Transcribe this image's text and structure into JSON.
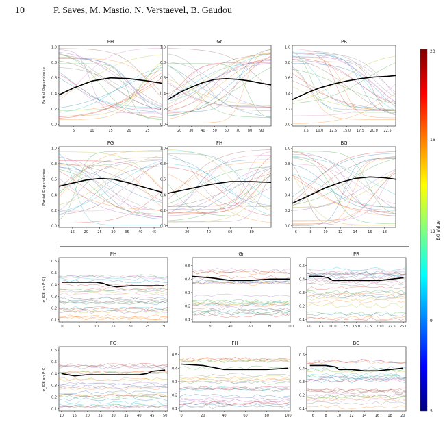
{
  "header": {
    "page_number": "10",
    "authors": "P. Saves, M. Mastio, N. Verstaevel, B. Gaudou"
  },
  "colorbar": {
    "label": "BG Value",
    "ticks": [
      "20",
      "16",
      "12",
      "9",
      "5"
    ],
    "range": [
      5,
      20
    ],
    "colors": [
      "#00007f",
      "#0000ff",
      "#007fff",
      "#00ffff",
      "#7fff7f",
      "#ffff00",
      "#ff7f00",
      "#ff0000",
      "#7f0000"
    ]
  },
  "chart_data": [
    {
      "type": "line",
      "group": "pdp",
      "title": "PH",
      "ylabel": "Partial Dependence",
      "xlim": [
        1,
        29
      ],
      "ylim": [
        -0.02,
        1.02
      ],
      "xticks": [
        "5",
        "10",
        "15",
        "20",
        "25"
      ],
      "yticks": [
        "0.0",
        "0.2",
        "0.4",
        "0.6",
        "0.8",
        "1.0"
      ],
      "series": [
        {
          "x": [
            1,
            5,
            10,
            15,
            20,
            25,
            29
          ],
          "values": [
            0.38,
            0.47,
            0.56,
            0.6,
            0.59,
            0.56,
            0.53
          ]
        }
      ]
    },
    {
      "type": "line",
      "group": "pdp",
      "title": "Gr",
      "ylabel": "",
      "xlim": [
        10,
        98
      ],
      "ylim": [
        -0.02,
        1.02
      ],
      "xticks": [
        "20",
        "30",
        "40",
        "50",
        "60",
        "70",
        "80",
        "90"
      ],
      "yticks": [
        "0.0",
        "0.2",
        "0.4",
        "0.6",
        "0.8",
        "1.0"
      ],
      "series": [
        {
          "x": [
            10,
            20,
            30,
            40,
            50,
            60,
            70,
            80,
            90,
            98
          ],
          "values": [
            0.32,
            0.41,
            0.48,
            0.54,
            0.58,
            0.59,
            0.58,
            0.56,
            0.53,
            0.51
          ]
        }
      ]
    },
    {
      "type": "line",
      "group": "pdp",
      "title": "PR",
      "ylabel": "",
      "xlim": [
        5,
        24
      ],
      "ylim": [
        -0.02,
        1.02
      ],
      "xticks": [
        "7.5",
        "10.0",
        "12.5",
        "15.0",
        "17.5",
        "20.0",
        "22.5"
      ],
      "yticks": [
        "0.0",
        "0.2",
        "0.4",
        "0.6",
        "0.8",
        "1.0"
      ],
      "series": [
        {
          "x": [
            5,
            7.5,
            10,
            12.5,
            15,
            17.5,
            20,
            22.5,
            24
          ],
          "values": [
            0.32,
            0.4,
            0.47,
            0.52,
            0.56,
            0.59,
            0.61,
            0.62,
            0.63
          ]
        }
      ]
    },
    {
      "type": "line",
      "group": "pdp",
      "title": "FG",
      "ylabel": "Partial Dependence",
      "xlim": [
        10,
        48
      ],
      "ylim": [
        -0.02,
        1.02
      ],
      "xticks": [
        "15",
        "20",
        "25",
        "30",
        "35",
        "40",
        "45"
      ],
      "yticks": [
        "0.0",
        "0.2",
        "0.4",
        "0.6",
        "0.8",
        "1.0"
      ],
      "series": [
        {
          "x": [
            10,
            15,
            20,
            25,
            30,
            35,
            40,
            45,
            48
          ],
          "values": [
            0.51,
            0.55,
            0.59,
            0.61,
            0.6,
            0.56,
            0.51,
            0.46,
            0.43
          ]
        }
      ]
    },
    {
      "type": "line",
      "group": "pdp",
      "title": "FH",
      "ylabel": "",
      "xlim": [
        2,
        98
      ],
      "ylim": [
        -0.02,
        1.02
      ],
      "xticks": [
        "20",
        "40",
        "60",
        "80"
      ],
      "yticks": [
        "0.0",
        "0.2",
        "0.4",
        "0.6",
        "0.8",
        "1.0"
      ],
      "series": [
        {
          "x": [
            2,
            20,
            40,
            60,
            80,
            98
          ],
          "values": [
            0.42,
            0.47,
            0.53,
            0.57,
            0.57,
            0.56
          ]
        }
      ]
    },
    {
      "type": "line",
      "group": "pdp",
      "title": "BG",
      "ylabel": "",
      "xlim": [
        5.5,
        19.5
      ],
      "ylim": [
        -0.02,
        1.02
      ],
      "xticks": [
        "6",
        "8",
        "10",
        "12",
        "14",
        "16",
        "18"
      ],
      "yticks": [
        "0.0",
        "0.2",
        "0.4",
        "0.6",
        "0.8",
        "1.0"
      ],
      "series": [
        {
          "x": [
            5.5,
            8,
            10,
            12,
            14,
            16,
            18,
            19.5
          ],
          "values": [
            0.29,
            0.4,
            0.49,
            0.56,
            0.61,
            0.63,
            0.62,
            0.6
          ]
        }
      ]
    },
    {
      "type": "line",
      "group": "sd",
      "title": "PH",
      "ylabel": "σ_ICE on P(C)",
      "xlim": [
        -1,
        31
      ],
      "ylim": [
        0.08,
        0.63
      ],
      "xticks": [
        "0",
        "5",
        "10",
        "15",
        "20",
        "25",
        "30"
      ],
      "yticks": [
        "0.1",
        "0.2",
        "0.3",
        "0.4",
        "0.5",
        "0.6"
      ],
      "series": [
        {
          "x": [
            0,
            5,
            10,
            12,
            14,
            16,
            20,
            25,
            30
          ],
          "values": [
            0.42,
            0.42,
            0.42,
            0.41,
            0.39,
            0.38,
            0.39,
            0.39,
            0.39
          ]
        }
      ]
    },
    {
      "type": "line",
      "group": "sd",
      "title": "Gr",
      "ylabel": "",
      "xlim": [
        2,
        100
      ],
      "ylim": [
        0.08,
        0.56
      ],
      "xticks": [
        "20",
        "40",
        "60",
        "80",
        "100"
      ],
      "yticks": [
        "0.1",
        "0.2",
        "0.3",
        "0.4",
        "0.5"
      ],
      "series": [
        {
          "x": [
            2,
            20,
            30,
            40,
            60,
            80,
            100
          ],
          "values": [
            0.42,
            0.41,
            0.4,
            0.39,
            0.39,
            0.4,
            0.4
          ]
        }
      ]
    },
    {
      "type": "line",
      "group": "sd",
      "title": "PR",
      "ylabel": "",
      "xlim": [
        4.5,
        25.5
      ],
      "ylim": [
        0.08,
        0.56
      ],
      "xticks": [
        "5.0",
        "7.5",
        "10.0",
        "12.5",
        "15.0",
        "17.5",
        "20.0",
        "22.5",
        "25.0"
      ],
      "yticks": [
        "0.1",
        "0.2",
        "0.3",
        "0.4",
        "0.5"
      ],
      "series": [
        {
          "x": [
            5,
            7.5,
            9,
            10,
            12.5,
            15,
            17.5,
            20,
            22.5,
            25
          ],
          "values": [
            0.42,
            0.42,
            0.41,
            0.39,
            0.39,
            0.39,
            0.39,
            0.39,
            0.4,
            0.41
          ]
        }
      ]
    },
    {
      "type": "line",
      "group": "sd",
      "title": "FG",
      "ylabel": "σ_ICE on P(C)",
      "xlim": [
        9,
        51
      ],
      "ylim": [
        0.08,
        0.63
      ],
      "xticks": [
        "10",
        "15",
        "20",
        "25",
        "30",
        "35",
        "40",
        "45",
        "50"
      ],
      "yticks": [
        "0.1",
        "0.2",
        "0.3",
        "0.4",
        "0.5",
        "0.6"
      ],
      "series": [
        {
          "x": [
            10,
            15,
            20,
            25,
            30,
            35,
            40,
            43,
            45,
            50
          ],
          "values": [
            0.4,
            0.38,
            0.39,
            0.39,
            0.39,
            0.39,
            0.39,
            0.4,
            0.42,
            0.43
          ]
        }
      ]
    },
    {
      "type": "line",
      "group": "sd",
      "title": "FH",
      "ylabel": "",
      "xlim": [
        -2,
        102
      ],
      "ylim": [
        0.08,
        0.56
      ],
      "xticks": [
        "0",
        "20",
        "40",
        "60",
        "80",
        "100"
      ],
      "yticks": [
        "0.1",
        "0.2",
        "0.3",
        "0.4",
        "0.5"
      ],
      "series": [
        {
          "x": [
            0,
            20,
            40,
            60,
            80,
            100
          ],
          "values": [
            0.43,
            0.42,
            0.39,
            0.39,
            0.39,
            0.4
          ]
        }
      ]
    },
    {
      "type": "line",
      "group": "sd",
      "title": "BG",
      "ylabel": "",
      "xlim": [
        5,
        20.5
      ],
      "ylim": [
        0.08,
        0.56
      ],
      "xticks": [
        "6",
        "8",
        "10",
        "12",
        "14",
        "16",
        "18",
        "20"
      ],
      "yticks": [
        "0.1",
        "0.2",
        "0.3",
        "0.4",
        "0.5"
      ],
      "series": [
        {
          "x": [
            5.5,
            8,
            9.5,
            10,
            12,
            14,
            16,
            18,
            20
          ],
          "values": [
            0.42,
            0.42,
            0.41,
            0.39,
            0.39,
            0.38,
            0.38,
            0.39,
            0.4
          ]
        }
      ]
    }
  ]
}
